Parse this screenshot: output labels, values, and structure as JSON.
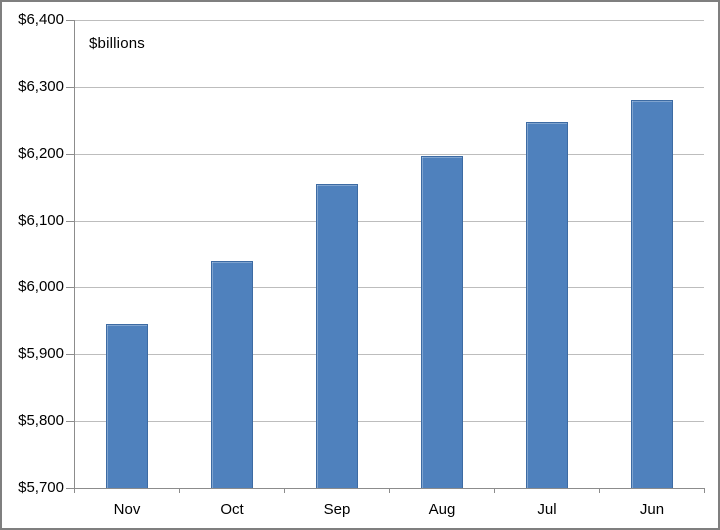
{
  "chart_data": {
    "type": "bar",
    "title": "",
    "units_note": "$billions",
    "categories": [
      "Nov",
      "Oct",
      "Sep",
      "Aug",
      "Jul",
      "Jun"
    ],
    "values": [
      5945,
      6040,
      6155,
      6197,
      6247,
      6280
    ],
    "series_name": "",
    "xlabel": "",
    "ylabel": "",
    "ylim": [
      5700,
      6400
    ],
    "ytick_step": 100,
    "yticks": [
      {
        "value": 5700,
        "label": "$5,700"
      },
      {
        "value": 5800,
        "label": "$5,800"
      },
      {
        "value": 5900,
        "label": "$5,900"
      },
      {
        "value": 6000,
        "label": "$6,000"
      },
      {
        "value": 6100,
        "label": "$6,100"
      },
      {
        "value": 6200,
        "label": "$6,200"
      },
      {
        "value": 6300,
        "label": "$6,300"
      },
      {
        "value": 6400,
        "label": "$6,400"
      }
    ],
    "grid": true,
    "legend_position": "none",
    "colors": {
      "bar_fill": "#4F81BD",
      "bar_border": "#3D6BA3",
      "bar_inner_highlight": "rgba(255,255,255,0.28)",
      "gridline": "#BDBDBD",
      "axis": "#8C8C8C",
      "text": "#000000",
      "frame_border": "#7F7F7F",
      "background": "#FFFFFF"
    }
  }
}
